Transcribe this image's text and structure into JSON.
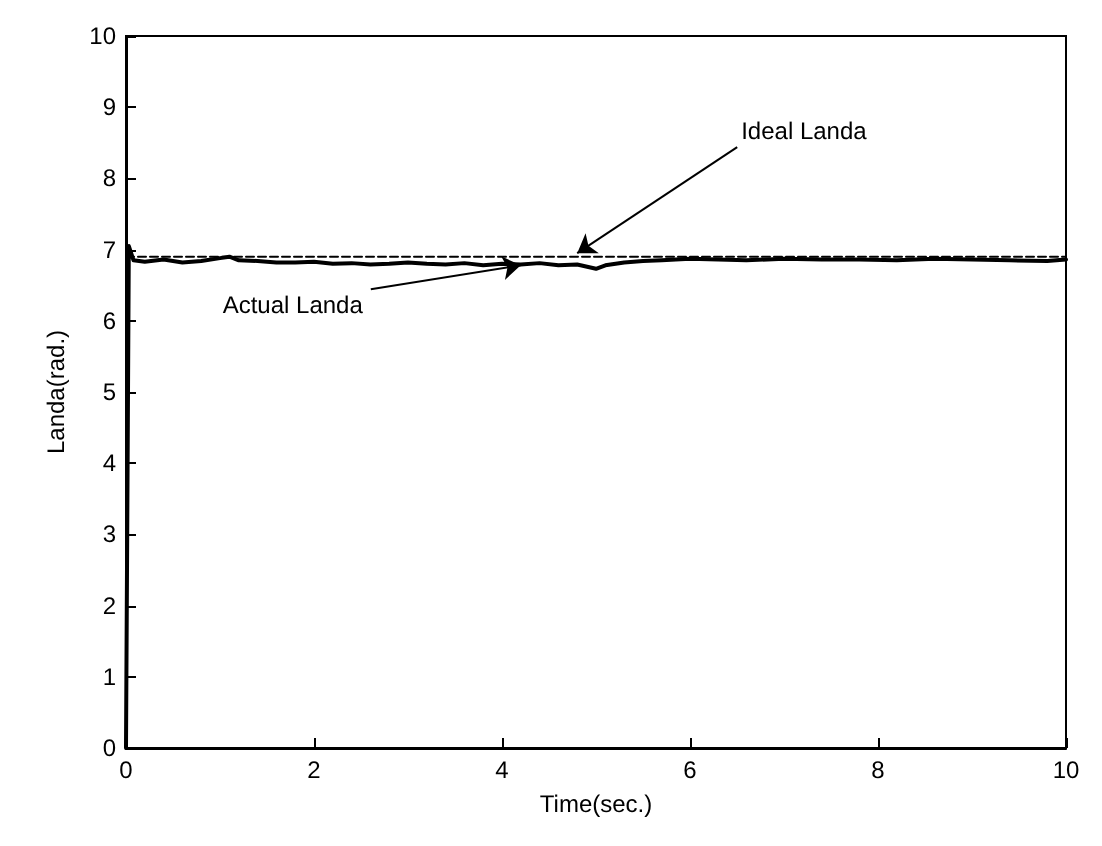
{
  "chart_data": {
    "type": "line",
    "xlabel": "Time(sec.)",
    "ylabel": "Landa(rad.)",
    "xlim": [
      0,
      10
    ],
    "ylim": [
      0,
      10
    ],
    "xticks": [
      0,
      2,
      4,
      6,
      8,
      10
    ],
    "yticks": [
      0,
      1,
      2,
      3,
      4,
      5,
      6,
      7,
      8,
      9,
      10
    ],
    "grid": false,
    "series": [
      {
        "color": "#000000",
        "line_style": "dashed",
        "x": [
          0,
          10
        ],
        "values": [
          6.9,
          6.9
        ]
      },
      {
        "color": "#000000",
        "line_style": "solid",
        "x": [
          0,
          0.03,
          0.08,
          0.2,
          0.4,
          0.6,
          0.8,
          1.0,
          1.1,
          1.2,
          1.4,
          1.6,
          1.8,
          2.0,
          2.2,
          2.4,
          2.6,
          2.8,
          3.0,
          3.2,
          3.4,
          3.6,
          3.8,
          4.0,
          4.2,
          4.4,
          4.6,
          4.8,
          5.0,
          5.1,
          5.3,
          5.5,
          5.7,
          6.0,
          6.3,
          6.6,
          7.0,
          7.4,
          7.8,
          8.2,
          8.6,
          9.0,
          9.4,
          9.8,
          10
        ],
        "values": [
          0,
          7.05,
          6.85,
          6.83,
          6.86,
          6.82,
          6.84,
          6.88,
          6.9,
          6.85,
          6.84,
          6.82,
          6.82,
          6.83,
          6.8,
          6.81,
          6.79,
          6.8,
          6.82,
          6.8,
          6.79,
          6.81,
          6.78,
          6.8,
          6.79,
          6.81,
          6.78,
          6.79,
          6.73,
          6.78,
          6.82,
          6.84,
          6.85,
          6.87,
          6.86,
          6.85,
          6.87,
          6.86,
          6.86,
          6.85,
          6.87,
          6.86,
          6.85,
          6.84,
          6.86
        ]
      }
    ],
    "annotations": [
      {
        "text": "Ideal Landa",
        "x": 4.8,
        "y": 6.95
      },
      {
        "text": "Actual Landa",
        "x": 4.2,
        "y": 6.78
      }
    ]
  }
}
